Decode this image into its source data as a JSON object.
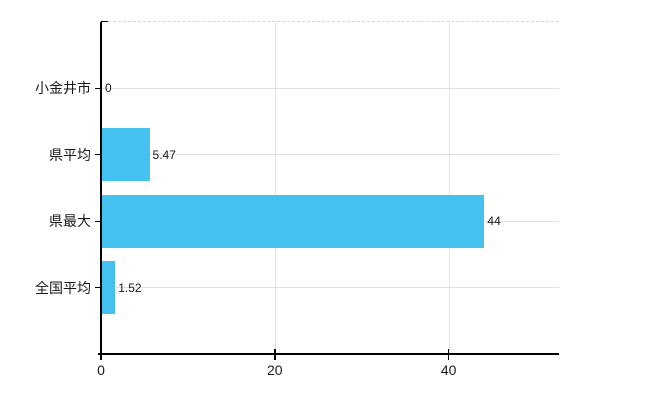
{
  "chart_data": {
    "type": "bar",
    "orientation": "horizontal",
    "title": "",
    "categories": [
      "小金井市",
      "県平均",
      "県最大",
      "全国平均"
    ],
    "values": [
      0,
      5.47,
      44,
      1.52
    ],
    "value_labels": [
      "0",
      "5.47",
      "44",
      "1.52"
    ],
    "x_ticks": [
      0,
      20,
      40
    ],
    "x_tick_labels": [
      "0",
      "20",
      "40"
    ],
    "xlim": [
      0,
      52.7
    ],
    "grid": true,
    "top_boundary_style": "dashed",
    "legend": "none",
    "colors": {
      "bar": "#45c1f0",
      "axis": "#000000",
      "h_gridline": "#dce4dc",
      "v_gridline": "#e4e4e4",
      "top_dashed_line": "#d6d6d6",
      "text": "#1a1a1a",
      "background": "#ffffff"
    }
  }
}
